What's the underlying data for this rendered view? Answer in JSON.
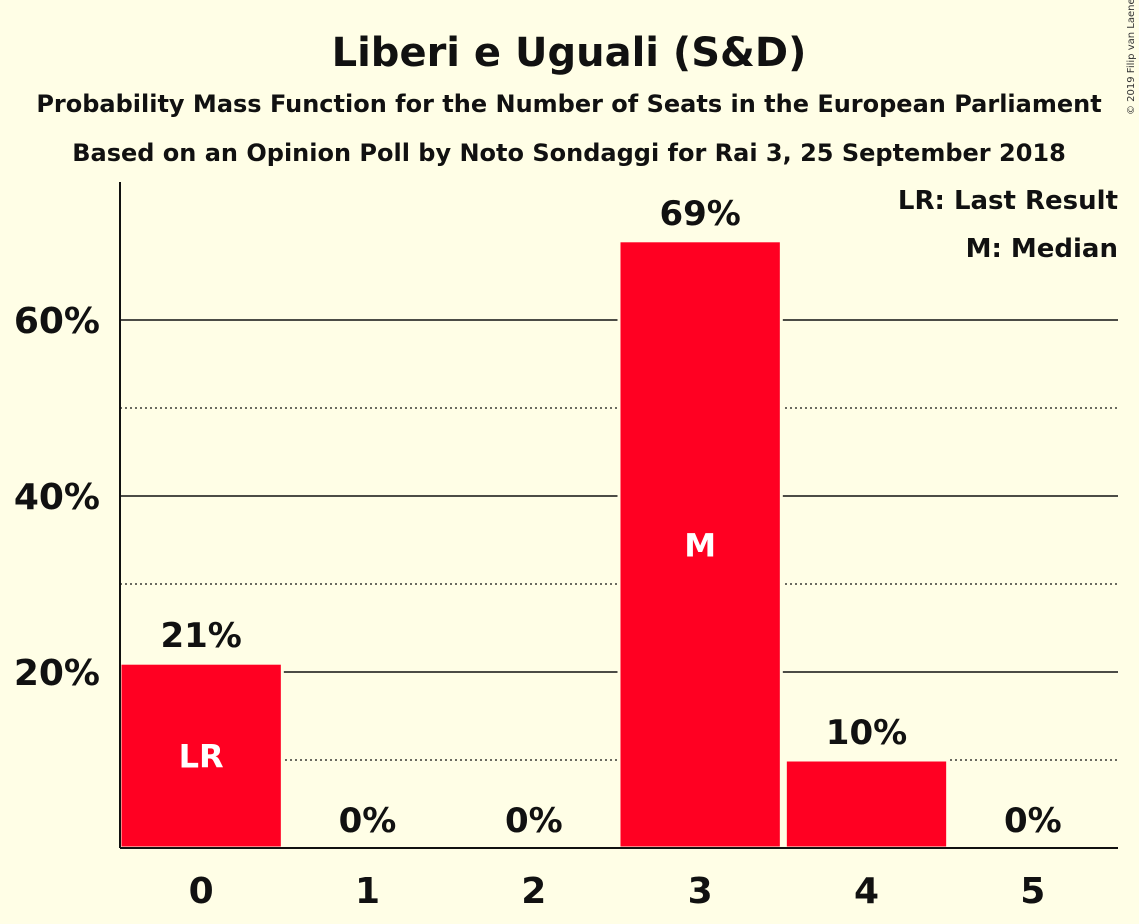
{
  "copyright": "© 2019 Filip van Laenen",
  "chart_data": {
    "type": "bar",
    "title": "Liberi e Uguali (S&D)",
    "subtitle": "Probability Mass Function for the Number of Seats in the European Parliament",
    "subtitle2": "Based on an Opinion Poll by Noto Sondaggi for Rai 3, 25 September 2018",
    "categories": [
      "0",
      "1",
      "2",
      "3",
      "4",
      "5"
    ],
    "values": [
      21,
      0,
      0,
      69,
      10,
      0
    ],
    "value_labels": [
      "21%",
      "0%",
      "0%",
      "69%",
      "10%",
      "0%"
    ],
    "bar_markers": [
      "LR",
      "",
      "",
      "M",
      "",
      ""
    ],
    "ylim": [
      0,
      75
    ],
    "yticks": [
      20,
      40,
      60
    ],
    "ytick_labels": [
      "20%",
      "40%",
      "60%"
    ],
    "minor_gridlines": [
      10,
      30,
      50
    ],
    "legend": [
      "LR: Last Result",
      "M: Median"
    ],
    "legend_position": "top-right",
    "bar_color": "#FF0022",
    "background_color": "#FFFEE6"
  }
}
